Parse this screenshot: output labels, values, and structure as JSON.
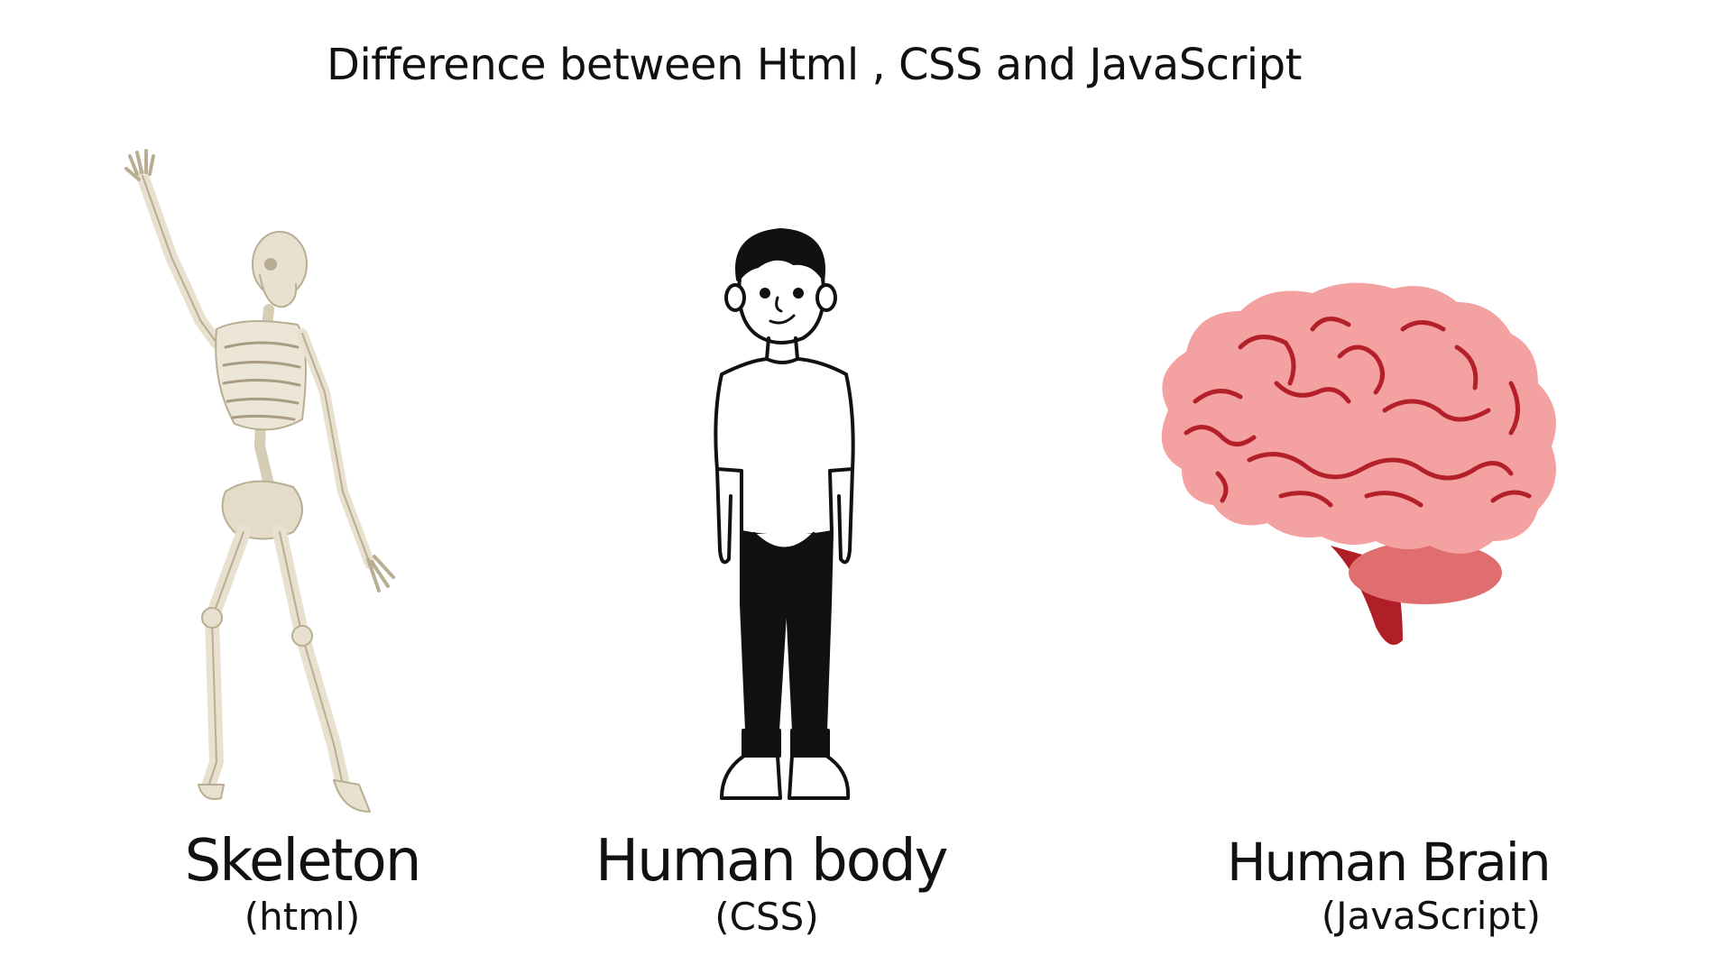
{
  "title": "Difference between Html , CSS and JavaScript",
  "items": [
    {
      "label": "Skeleton",
      "sublabel": "(html)",
      "icon": "skeleton-icon"
    },
    {
      "label": "Human body",
      "sublabel": "(CSS)",
      "icon": "person-icon"
    },
    {
      "label": "Human Brain",
      "sublabel": "(JavaScript)",
      "icon": "brain-icon"
    }
  ],
  "colors": {
    "bone": "#e8e1cf",
    "bone_shadow": "#b9ae94",
    "ink": "#111111",
    "brain_pink": "#f4a1a2",
    "brain_lines": "#b3202a",
    "cerebellum": "#e06e6f",
    "brainstem": "#b01e28"
  }
}
